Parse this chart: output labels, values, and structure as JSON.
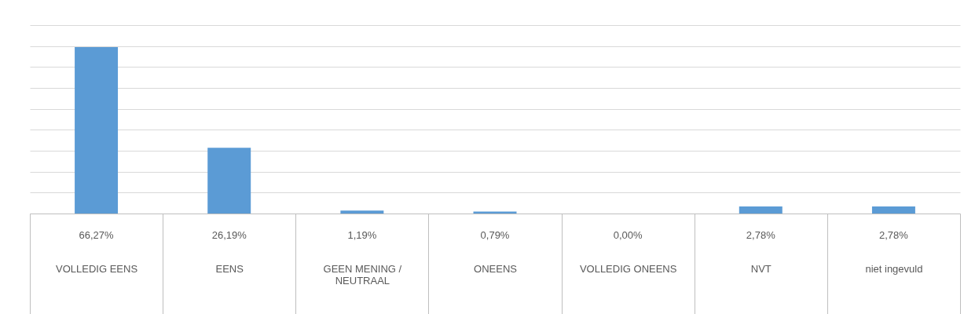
{
  "chart_data": {
    "type": "bar",
    "categories": [
      "VOLLEDIG EENS",
      "EENS",
      "GEEN MENING / NEUTRAAL",
      "ONEENS",
      "VOLLEDIG ONEENS",
      "NVT",
      "niet ingevuld"
    ],
    "values": [
      66.27,
      26.19,
      1.19,
      0.79,
      0.0,
      2.78,
      2.78
    ],
    "value_labels": [
      "66,27%",
      "26,19%",
      "1,19%",
      "0,79%",
      "0,00%",
      "2,78%",
      "2,78%"
    ],
    "color": "#5b9bd5",
    "ylim": [
      0,
      75
    ],
    "yticks": [
      {
        "value": 0,
        "label": null
      },
      {
        "value": 8.333,
        "label": null
      },
      {
        "value": 16.667,
        "label": null
      },
      {
        "value": 25,
        "label": null
      },
      {
        "value": 33.333,
        "label": null
      },
      {
        "value": 41.667,
        "label": null
      },
      {
        "value": 50,
        "label": null
      },
      {
        "value": 58.333,
        "label": null
      },
      {
        "value": 66.667,
        "label": null
      },
      {
        "value": 75,
        "label": null
      }
    ],
    "grid": "y"
  }
}
